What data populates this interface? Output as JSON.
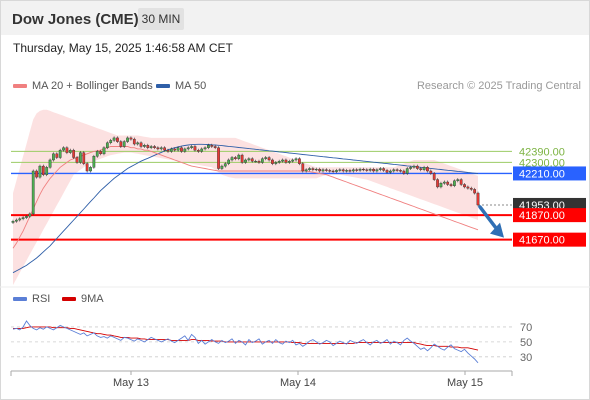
{
  "header": {
    "title": "Dow Jones (CME)",
    "timeframe": "30 MIN",
    "datetime": "Thursday, May 15, 2025 1:46:58 AM CET",
    "credit": "Research © 2025 Trading Central"
  },
  "legend": {
    "ma20": {
      "label": "MA 20 + Bollinger Bands",
      "color": "#f08080"
    },
    "ma50": {
      "label": "MA 50",
      "color": "#2f5fa8"
    },
    "rsi": {
      "label": "RSI",
      "color": "#5b7fd6"
    },
    "rsi9": {
      "label": "9MA",
      "color": "#d40000"
    }
  },
  "chart_data": [
    {
      "type": "candlestick",
      "x_labels": [
        "May 13",
        "May 14",
        "May 15"
      ],
      "y_range": [
        41300,
        42850
      ],
      "price_levels": [
        {
          "name": "resistance-2",
          "label": "42390.00",
          "value": 42390,
          "color": "#9ccc65",
          "kind": "resistance"
        },
        {
          "name": "resistance-1",
          "label": "42300.00",
          "value": 42300,
          "color": "#9ccc65",
          "kind": "resistance"
        },
        {
          "name": "pivot",
          "label": "42210.00",
          "value": 42210,
          "color": "#2962ff",
          "kind": "pivot"
        },
        {
          "name": "last-price",
          "label": "41953.00",
          "value": 41953,
          "color": "#333333",
          "kind": "last"
        },
        {
          "name": "support-1",
          "label": "41870.00",
          "value": 41870,
          "color": "#ff0000",
          "kind": "support"
        },
        {
          "name": "support-2",
          "label": "41670.00",
          "value": 41670,
          "color": "#ff0000",
          "kind": "support"
        }
      ],
      "close": [
        41820,
        41830,
        41840,
        41850,
        41860,
        41880,
        42230,
        42180,
        42270,
        42200,
        42260,
        42320,
        42370,
        42340,
        42400,
        42420,
        42380,
        42400,
        42340,
        42300,
        42380,
        42290,
        42230,
        42260,
        42350,
        42390,
        42370,
        42420,
        42460,
        42480,
        42500,
        42470,
        42430,
        42470,
        42500,
        42490,
        42450,
        42460,
        42430,
        42440,
        42420,
        42430,
        42420,
        42410,
        42420,
        42400,
        42390,
        42410,
        42400,
        42420,
        42390,
        42410,
        42420,
        42430,
        42400,
        42390,
        42410,
        42420,
        42440,
        42430,
        42420,
        42250,
        42270,
        42290,
        42320,
        42340,
        42330,
        42360,
        42300,
        42320,
        42330,
        42310,
        42310,
        42300,
        42330,
        42340,
        42320,
        42290,
        42300,
        42310,
        42320,
        42300,
        42310,
        42320,
        42330,
        42290,
        42230,
        42240,
        42250,
        42240,
        42245,
        42230,
        42240,
        42235,
        42230,
        42225,
        42235,
        42240,
        42230,
        42235,
        42230,
        42240,
        42235,
        42245,
        42240,
        42235,
        42245,
        42230,
        42240,
        42250,
        42235,
        42220,
        42230,
        42240,
        42235,
        42230,
        42210,
        42250,
        42260,
        42270,
        42250,
        42240,
        42260,
        42230,
        42210,
        42160,
        42100,
        42130,
        42140,
        42120,
        42110,
        42150,
        42160,
        42120,
        42100,
        42090,
        42080,
        42050,
        41953
      ],
      "ma20": [
        41600,
        41640,
        41690,
        41740,
        41800,
        41860,
        41920,
        41980,
        42040,
        42090,
        42130,
        42170,
        42200,
        42230,
        42260,
        42280,
        42300,
        42320,
        42330,
        42340,
        42350,
        42360,
        42370,
        42380,
        42390,
        42395,
        42400,
        42410,
        42420,
        42430,
        42430,
        42430,
        42430,
        42430,
        42430,
        42420,
        42420,
        42410,
        42410,
        42400,
        42400,
        42390,
        42380,
        42370,
        42360,
        42350,
        42340,
        42330,
        42320,
        42310,
        42300,
        42290,
        42280,
        42270,
        42265,
        42260,
        42255,
        42250,
        42245,
        42240,
        42235,
        42230,
        42230,
        42230,
        42230,
        42230,
        42230,
        42230,
        42230,
        42230,
        42230,
        42230,
        42230,
        42230,
        42230,
        42230,
        42230,
        42230,
        42230,
        42230,
        42230,
        42230,
        42230,
        42230,
        42230,
        42230,
        42230,
        42230,
        42225,
        42220,
        42215,
        42210,
        42205,
        42200,
        42190,
        42180,
        42170,
        42160,
        42150,
        42140,
        42130,
        42120,
        42110,
        42100,
        42090,
        42080,
        42070,
        42060,
        42050,
        42040,
        42030,
        42020,
        42010,
        42000,
        41990,
        41980,
        41970,
        41960,
        41950,
        41940,
        41930,
        41920,
        41910,
        41900,
        41890,
        41880,
        41870,
        41860,
        41850,
        41840,
        41830,
        41820,
        41810,
        41800,
        41790,
        41780,
        41770,
        41760,
        41750
      ],
      "ma50": [
        41400,
        41415,
        41430,
        41445,
        41460,
        41480,
        41500,
        41520,
        41545,
        41570,
        41595,
        41620,
        41650,
        41680,
        41710,
        41740,
        41770,
        41800,
        41830,
        41860,
        41890,
        41920,
        41950,
        41980,
        42010,
        42040,
        42070,
        42095,
        42120,
        42145,
        42170,
        42190,
        42210,
        42230,
        42250,
        42265,
        42280,
        42295,
        42310,
        42322,
        42334,
        42346,
        42358,
        42370,
        42382,
        42393,
        42403,
        42412,
        42420,
        42427,
        42433,
        42438,
        42442,
        42445,
        42447,
        42448,
        42448,
        42447,
        42446,
        42444,
        42442,
        42440,
        42437,
        42434,
        42431,
        42428,
        42425,
        42422,
        42419,
        42416,
        42413,
        42410,
        42407,
        42404,
        42401,
        42398,
        42395,
        42392,
        42389,
        42386,
        42383,
        42380,
        42377,
        42374,
        42371,
        42368,
        42365,
        42362,
        42359,
        42356,
        42353,
        42350,
        42347,
        42344,
        42341,
        42338,
        42335,
        42332,
        42329,
        42326,
        42323,
        42320,
        42317,
        42314,
        42311,
        42308,
        42305,
        42302,
        42299,
        42296,
        42293,
        42290,
        42287,
        42284,
        42281,
        42278,
        42275,
        42272,
        42269,
        42266,
        42263,
        42260,
        42257,
        42254,
        42251,
        42248,
        42245,
        42242,
        42239,
        42236,
        42233,
        42230,
        42227,
        42224,
        42221,
        42218,
        42215,
        42212,
        42209
      ],
      "bb_upper": [
        42050,
        42150,
        42250,
        42350,
        42450,
        42550,
        42650,
        42700,
        42720,
        42730,
        42730,
        42720,
        42710,
        42700,
        42690,
        42680,
        42670,
        42660,
        42650,
        42640,
        42630,
        42620,
        42610,
        42600,
        42590,
        42580,
        42570,
        42560,
        42550,
        42540,
        42530,
        42520,
        42520,
        42520,
        42520,
        42520,
        42520,
        42520,
        42515,
        42510,
        42505,
        42500,
        42500,
        42500,
        42500,
        42500,
        42500,
        42500,
        42500,
        42500,
        42500,
        42500,
        42500,
        42500,
        42500,
        42500,
        42500,
        42500,
        42500,
        42500,
        42500,
        42500,
        42500,
        42500,
        42500,
        42500,
        42500,
        42490,
        42480,
        42470,
        42460,
        42450,
        42440,
        42430,
        42420,
        42410,
        42400,
        42390,
        42380,
        42370,
        42360,
        42350,
        42340,
        42330,
        42320,
        42310,
        42300,
        42290,
        42280,
        42270,
        42260,
        42260,
        42260,
        42260,
        42260,
        42260,
        42260,
        42260,
        42260,
        42260,
        42260,
        42260,
        42260,
        42260,
        42260,
        42260,
        42260,
        42260,
        42260,
        42260,
        42260,
        42260,
        42260,
        42260,
        42270,
        42280,
        42290,
        42300,
        42310,
        42320,
        42320,
        42320,
        42320,
        42320,
        42320,
        42320,
        42310,
        42300,
        42290,
        42280,
        42270,
        42260,
        42250,
        42240,
        42230,
        42220,
        42210,
        42200,
        42190
      ],
      "bb_lower": [
        41300,
        41350,
        41400,
        41450,
        41500,
        41550,
        41600,
        41650,
        41700,
        41750,
        41800,
        41850,
        41900,
        41950,
        42000,
        42050,
        42100,
        42150,
        42200,
        42220,
        42240,
        42260,
        42280,
        42300,
        42310,
        42320,
        42330,
        42340,
        42350,
        42360,
        42365,
        42370,
        42375,
        42380,
        42380,
        42380,
        42375,
        42370,
        42365,
        42360,
        42355,
        42350,
        42345,
        42340,
        42335,
        42330,
        42325,
        42320,
        42315,
        42310,
        42305,
        42300,
        42295,
        42290,
        42285,
        42280,
        42275,
        42270,
        42265,
        42260,
        42240,
        42220,
        42200,
        42190,
        42180,
        42175,
        42170,
        42170,
        42170,
        42170,
        42170,
        42170,
        42170,
        42170,
        42170,
        42170,
        42170,
        42170,
        42170,
        42170,
        42170,
        42170,
        42170,
        42170,
        42170,
        42170,
        42170,
        42170,
        42170,
        42170,
        42170,
        42180,
        42190,
        42195,
        42200,
        42200,
        42200,
        42200,
        42195,
        42190,
        42185,
        42180,
        42175,
        42170,
        42165,
        42160,
        42150,
        42140,
        42130,
        42120,
        42110,
        42100,
        42090,
        42080,
        42070,
        42060,
        42050,
        42040,
        42030,
        42020,
        42010,
        42000,
        41990,
        41980,
        41970,
        41960,
        41950,
        41940,
        41930,
        41920,
        41910,
        41900,
        41890,
        41880,
        41870,
        41860,
        41850,
        41840,
        41830
      ]
    },
    {
      "type": "line",
      "name": "rsi-panel",
      "y_ticks": [
        "70",
        "50",
        "30"
      ],
      "tick_values": [
        70,
        50,
        30
      ],
      "y_range": [
        15,
        90
      ],
      "rsi": [
        67,
        68,
        66,
        70,
        78,
        72,
        68,
        66,
        69,
        67,
        70,
        68,
        66,
        69,
        72,
        70,
        68,
        66,
        64,
        62,
        60,
        62,
        58,
        60,
        62,
        58,
        56,
        57,
        55,
        58,
        56,
        54,
        52,
        56,
        55,
        53,
        51,
        54,
        52,
        50,
        53,
        56,
        54,
        52,
        50,
        52,
        54,
        51,
        49,
        52,
        55,
        58,
        52,
        60,
        56,
        48,
        52,
        47,
        50,
        53,
        50,
        48,
        52,
        49,
        51,
        54,
        48,
        52,
        50,
        46,
        53,
        49,
        51,
        54,
        47,
        50,
        52,
        48,
        53,
        49,
        47,
        51,
        49,
        52,
        46,
        48,
        44,
        47,
        51,
        53,
        50,
        47,
        49,
        52,
        50,
        45,
        48,
        51,
        49,
        47,
        52,
        50,
        48,
        51,
        53,
        49,
        46,
        50,
        52,
        48,
        50,
        53,
        47,
        51,
        49,
        46,
        52,
        55,
        51,
        48,
        44,
        40,
        42,
        38,
        42,
        47,
        44,
        41,
        39,
        43,
        46,
        41,
        39,
        37,
        40,
        35,
        31,
        27,
        22
      ],
      "rsi9": [
        68,
        68,
        68,
        68,
        69,
        70,
        70,
        70,
        70,
        70,
        70,
        70,
        69,
        69,
        69,
        69,
        69,
        68,
        68,
        67,
        66,
        65,
        64,
        63,
        62,
        61,
        61,
        60,
        59,
        59,
        58,
        57,
        56,
        56,
        56,
        55,
        55,
        55,
        54,
        54,
        53,
        53,
        53,
        53,
        53,
        53,
        53,
        52,
        52,
        52,
        52,
        52,
        52,
        53,
        53,
        52,
        52,
        52,
        52,
        51,
        51,
        51,
        51,
        50,
        50,
        50,
        50,
        50,
        50,
        50,
        50,
        50,
        50,
        50,
        50,
        50,
        50,
        50,
        50,
        50,
        50,
        50,
        50,
        49,
        49,
        49,
        48,
        48,
        48,
        48,
        48,
        48,
        48,
        48,
        48,
        48,
        48,
        48,
        48,
        48,
        48,
        48,
        49,
        49,
        49,
        49,
        49,
        49,
        49,
        49,
        49,
        49,
        49,
        49,
        49,
        49,
        49,
        49,
        49,
        49,
        48,
        47,
        46,
        45,
        45,
        45,
        44,
        44,
        44,
        44,
        43,
        43,
        43,
        42,
        42,
        42,
        41,
        40,
        39
      ]
    }
  ]
}
